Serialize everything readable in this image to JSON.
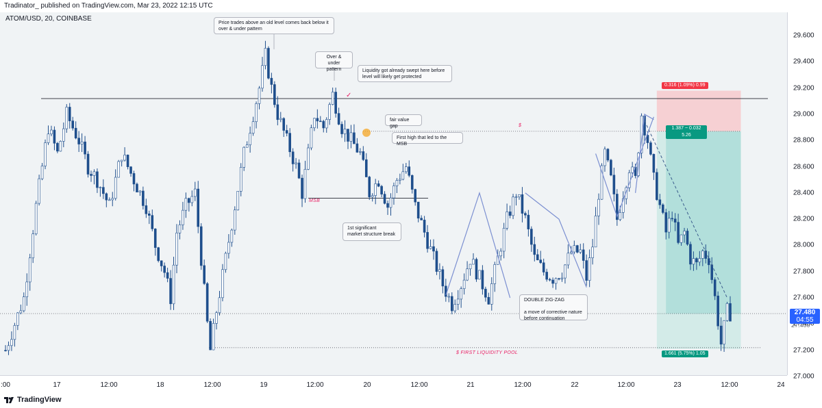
{
  "header": {
    "text": "Tradinator_  published on TradingView.com, Mar 23, 2022 12:15 UTC"
  },
  "symbol": "ATOM/USD, 20, COINBASE",
  "price_axis": {
    "ticks": [
      "29.600",
      "29.400",
      "29.200",
      "29.000",
      "28.800",
      "28.600",
      "28.400",
      "28.200",
      "28.000",
      "27.800",
      "27.600",
      "27.400",
      "27.200",
      "27.000"
    ]
  },
  "time_axis": {
    "ticks": [
      ":00",
      "17",
      "12:00",
      "18",
      "12:00",
      "19",
      "12:00",
      "20",
      "12:00",
      "21",
      "12:00",
      "22",
      "12:00",
      "23",
      "12:00",
      "24"
    ]
  },
  "last_price": {
    "value": "27.480",
    "countdown": "04:55",
    "hidden_tick": "27.400"
  },
  "annotations": {
    "note1": "Price trades above an old level comes back below it\nover & under pattern",
    "note2": "Over & under\npattern",
    "note3": "Liquidity got already swept here before\nlevel will likely get protected",
    "note4": "fair value gap",
    "note5": "First high that led to the MSB",
    "note6": "1st significant\nmarket structure break",
    "note7": "DOUBLE ZIG-ZAG\n\na move of corrective nature\nbefore continuation",
    "msb": "MSB",
    "dollar_upper": "$",
    "liquidity_pool": "$   FIRST LIQUIDITY POOL",
    "checkmark": "✓"
  },
  "position": {
    "stop_label": "0.316 (1.09%) 0.99",
    "entry_label": "1.387 ~ 0.032\n5.26",
    "target_label": "1.661 (5.75%) 1.05"
  },
  "footer": {
    "brand": "TradingView",
    "icon": "tradingview-logo-icon"
  },
  "colors": {
    "up": "#1e4e8c",
    "down": "#1e4e8c",
    "stop_zone": "#f7c9cc",
    "target_zone": "#b2dfdb",
    "stop_tag": "#f23645",
    "target_tag": "#089981",
    "last_price": "#2962ff",
    "accent_red": "#e91e63"
  },
  "chart_data": {
    "type": "candlestick",
    "symbol": "ATOM/USD",
    "interval": "20",
    "ylim": [
      27.0,
      29.7
    ],
    "x_ticks": [
      ":00",
      "17",
      "12:00",
      "18",
      "12:00",
      "19",
      "12:00",
      "20",
      "12:00",
      "21",
      "12:00",
      "22",
      "12:00",
      "23",
      "12:00",
      "24"
    ],
    "price_path": [
      [
        0,
        27.2
      ],
      [
        6,
        27.6
      ],
      [
        10,
        28.3
      ],
      [
        14,
        28.9
      ],
      [
        17,
        28.7
      ],
      [
        20,
        29.0
      ],
      [
        24,
        28.8
      ],
      [
        27,
        28.6
      ],
      [
        30,
        28.5
      ],
      [
        34,
        28.3
      ],
      [
        38,
        28.7
      ],
      [
        42,
        28.5
      ],
      [
        46,
        28.3
      ],
      [
        49,
        28.0
      ],
      [
        52,
        27.8
      ],
      [
        54,
        27.6
      ],
      [
        56,
        28.1
      ],
      [
        59,
        28.3
      ],
      [
        62,
        28.4
      ],
      [
        64,
        27.9
      ],
      [
        66,
        27.4
      ],
      [
        67,
        27.2
      ],
      [
        69,
        27.5
      ],
      [
        72,
        27.9
      ],
      [
        75,
        28.3
      ],
      [
        78,
        28.7
      ],
      [
        81,
        29.0
      ],
      [
        83,
        29.2
      ],
      [
        85,
        29.45
      ],
      [
        87,
        29.2
      ],
      [
        89,
        29.0
      ],
      [
        92,
        28.8
      ],
      [
        95,
        28.6
      ],
      [
        97,
        28.4
      ],
      [
        99,
        28.7
      ],
      [
        101,
        29.0
      ],
      [
        104,
        28.9
      ],
      [
        107,
        29.15
      ],
      [
        110,
        28.9
      ],
      [
        113,
        28.8
      ],
      [
        116,
        28.7
      ],
      [
        119,
        28.4
      ],
      [
        122,
        28.5
      ],
      [
        125,
        28.3
      ],
      [
        128,
        28.5
      ],
      [
        131,
        28.6
      ],
      [
        134,
        28.3
      ],
      [
        137,
        28.1
      ],
      [
        140,
        27.9
      ],
      [
        143,
        27.7
      ],
      [
        146,
        27.55
      ],
      [
        149,
        27.7
      ],
      [
        152,
        27.9
      ],
      [
        155,
        27.75
      ],
      [
        158,
        27.6
      ],
      [
        161,
        27.9
      ],
      [
        164,
        28.2
      ],
      [
        167,
        28.4
      ],
      [
        170,
        28.2
      ],
      [
        173,
        27.9
      ],
      [
        176,
        27.8
      ],
      [
        179,
        27.75
      ],
      [
        182,
        27.8
      ],
      [
        185,
        27.95
      ],
      [
        188,
        27.95
      ],
      [
        190,
        27.75
      ],
      [
        192,
        28.0
      ],
      [
        194,
        28.4
      ],
      [
        196,
        28.7
      ],
      [
        198,
        28.5
      ],
      [
        200,
        28.2
      ],
      [
        202,
        28.4
      ],
      [
        204,
        28.6
      ],
      [
        206,
        28.5
      ],
      [
        208,
        29.0
      ],
      [
        210,
        28.8
      ],
      [
        212,
        28.5
      ],
      [
        214,
        28.3
      ],
      [
        216,
        28.1
      ],
      [
        218,
        28.25
      ],
      [
        220,
        28.0
      ],
      [
        222,
        28.1
      ],
      [
        224,
        27.9
      ],
      [
        226,
        27.85
      ],
      [
        228,
        27.95
      ],
      [
        230,
        27.9
      ],
      [
        232,
        27.6
      ],
      [
        234,
        27.25
      ],
      [
        236,
        27.5
      ],
      [
        237,
        27.48
      ]
    ],
    "levels": [
      {
        "price": 29.12,
        "style": "solid",
        "label": ""
      },
      {
        "price": 28.36,
        "style": "solid",
        "label": "MSB"
      },
      {
        "price": 28.87,
        "style": "dotted",
        "label": "$"
      },
      {
        "price": 27.22,
        "style": "dotted",
        "label": "$   FIRST LIQUIDITY POOL"
      },
      {
        "price": 27.48,
        "style": "dotted",
        "label": ""
      }
    ],
    "position": {
      "type": "short",
      "entry": 28.87,
      "stop": 29.18,
      "target": 27.21
    }
  }
}
